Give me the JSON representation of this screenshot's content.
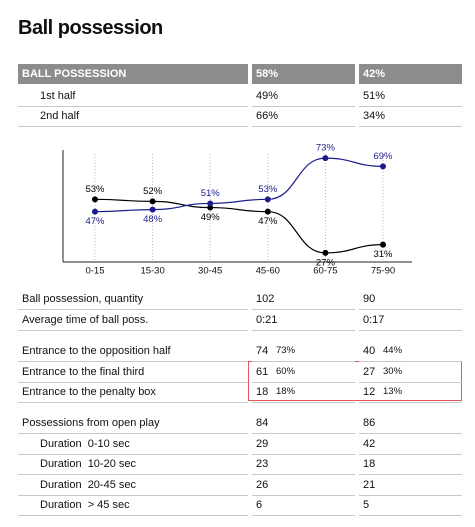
{
  "header": {
    "title": "Ball possession"
  },
  "summary": {
    "columns": [
      "BALL POSSESSION",
      "58%",
      "42%"
    ],
    "rows": [
      [
        "1st half",
        "49%",
        "51%"
      ],
      [
        "2nd half",
        "66%",
        "34%"
      ]
    ]
  },
  "chart_data": {
    "type": "line",
    "categories": [
      "0-15",
      "15-30",
      "30-45",
      "45-60",
      "60-75",
      "75-90"
    ],
    "series": [
      {
        "color": "#000000",
        "values": [
          53,
          52,
          49,
          47,
          27,
          31
        ],
        "value_labels": [
          "53%",
          "52%",
          "49%",
          "47%",
          "27%",
          "31%"
        ]
      },
      {
        "color": "#1c1c8e",
        "values": [
          47,
          48,
          51,
          53,
          73,
          69
        ],
        "value_labels": [
          "47%",
          "48%",
          "51%",
          "53%",
          "73%",
          "69%"
        ]
      }
    ],
    "ylim": [
      25,
      75
    ]
  },
  "stats": {
    "groups": [
      {
        "rows": [
          [
            "Ball possession, quantity",
            "102",
            "90"
          ],
          [
            "Average time of ball poss.",
            "0:21",
            "0:17"
          ]
        ]
      },
      {
        "rows": [
          [
            "Entrance to the opposition half",
            [
              "74",
              "73%"
            ],
            [
              "40",
              "44%"
            ]
          ],
          [
            "Entrance to the final third",
            [
              "61",
              "60%"
            ],
            [
              "27",
              "30%"
            ]
          ],
          [
            "Entrance to the penalty box",
            [
              "18",
              "18%"
            ],
            [
              "12",
              "13%"
            ]
          ]
        ]
      },
      {
        "rows": [
          [
            "Possessions from open play",
            "84",
            "86"
          ],
          [
            "Duration  0-10 sec",
            "29",
            "42"
          ],
          [
            "Duration  10-20 sec",
            "23",
            "18"
          ],
          [
            "Duration  20-45 sec",
            "26",
            "21"
          ],
          [
            "Duration  > 45 sec",
            "6",
            "5"
          ]
        ]
      }
    ]
  }
}
